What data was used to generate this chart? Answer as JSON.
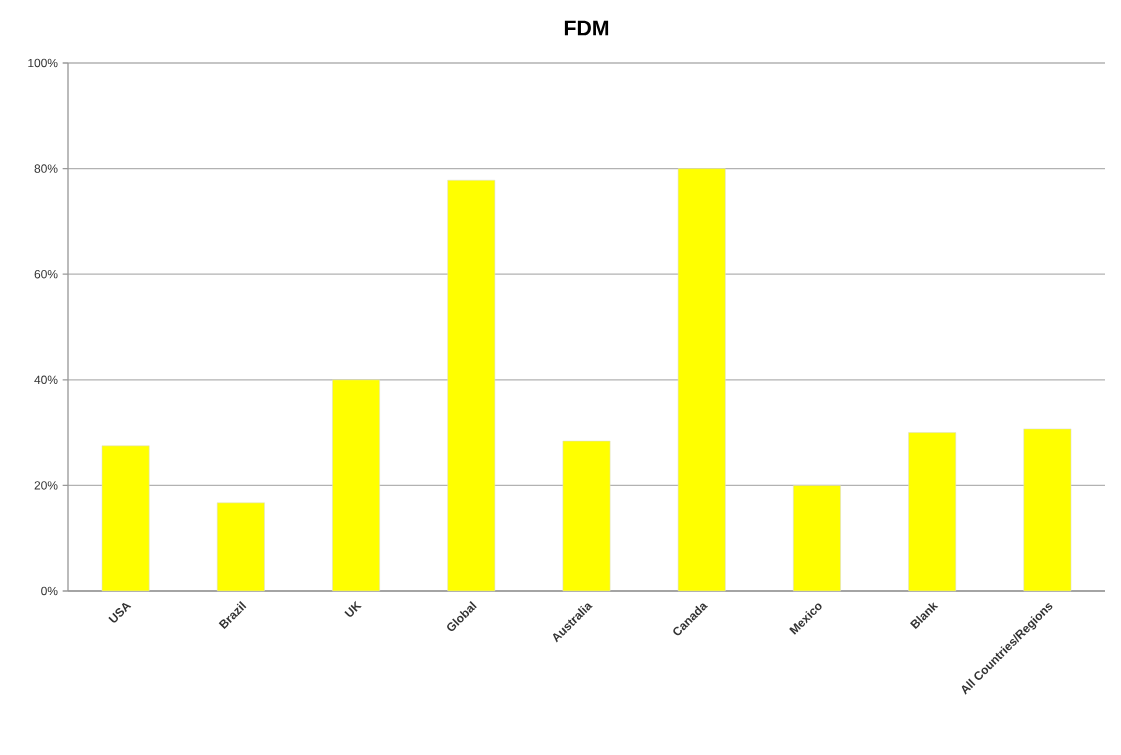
{
  "chart_data": {
    "type": "bar",
    "title": "FDM",
    "categories": [
      "USA",
      "Brazil",
      "UK",
      "Global",
      "Australia",
      "Canada",
      "Mexico",
      "Blank",
      "All Countries/Regions"
    ],
    "values": [
      27.5,
      16.7,
      40,
      77.8,
      28.4,
      80,
      20,
      30,
      30.7
    ],
    "color": "#ffff00",
    "ylim": [
      0,
      100
    ],
    "yticks": [
      {
        "value": 0,
        "label": "0%"
      },
      {
        "value": 20,
        "label": "20%"
      },
      {
        "value": 40,
        "label": "40%"
      },
      {
        "value": 60,
        "label": "60%"
      },
      {
        "value": 80,
        "label": "80%"
      },
      {
        "value": 100,
        "label": "100%"
      }
    ],
    "grid": "y"
  }
}
